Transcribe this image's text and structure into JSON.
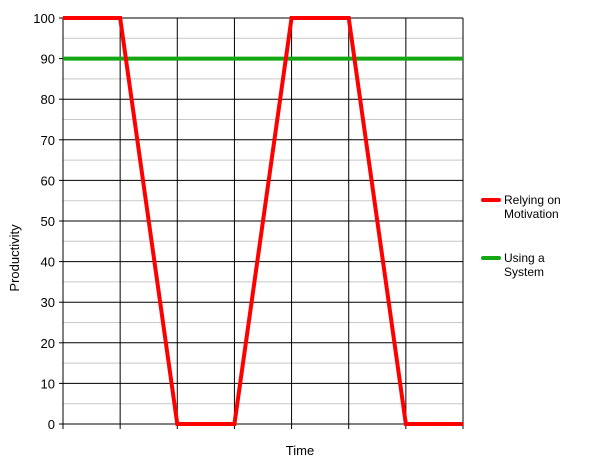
{
  "chart_data": {
    "type": "line",
    "title": "",
    "xlabel": "Time",
    "ylabel": "Productivity",
    "x": [
      0,
      1,
      2,
      3,
      4,
      5,
      6,
      7
    ],
    "xlim": [
      0,
      7
    ],
    "ylim": [
      0,
      100
    ],
    "yticks": [
      0,
      10,
      20,
      30,
      40,
      50,
      60,
      70,
      80,
      90,
      100
    ],
    "grid": true,
    "legend_position": "right",
    "series": [
      {
        "name": "Relying on Motivation",
        "label_lines": [
          "Relying on",
          "Motivation"
        ],
        "color": "#ff0000",
        "values": [
          100,
          100,
          0,
          0,
          100,
          100,
          0,
          0
        ]
      },
      {
        "name": "Using a System",
        "label_lines": [
          "Using a",
          "System"
        ],
        "color": "#13a813",
        "values": [
          90,
          90,
          90,
          90,
          90,
          90,
          90,
          90
        ]
      }
    ]
  }
}
